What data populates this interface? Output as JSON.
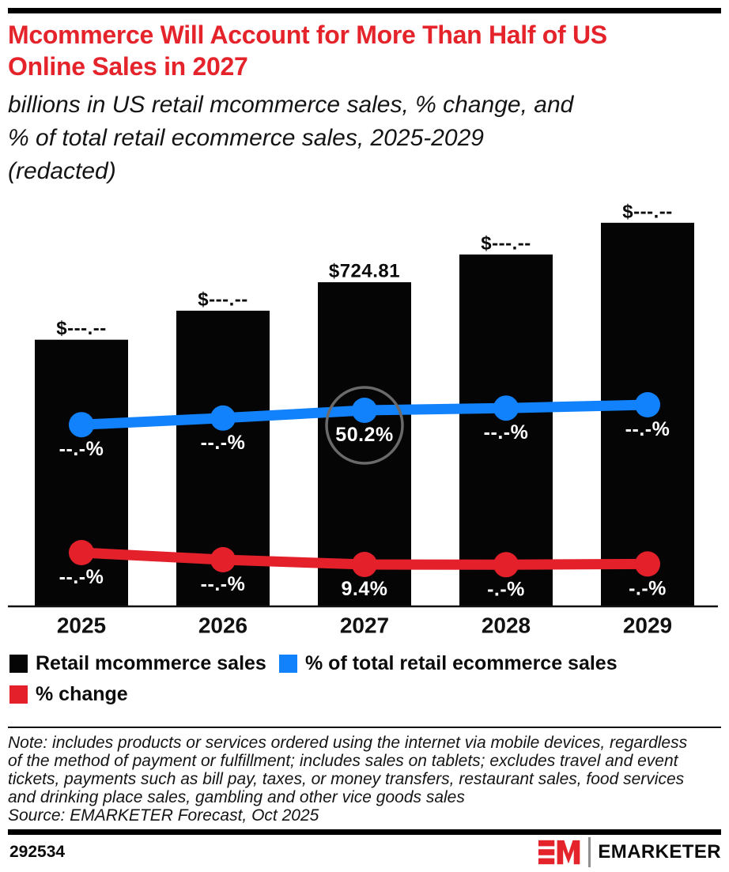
{
  "colors": {
    "title_red": "#e4232b",
    "brand_red": "#e4232b",
    "bar_black": "#050505",
    "line_blue": "#1182fb",
    "line_red": "#e4202a",
    "highlight_ring_gray": "#6a6a6a"
  },
  "header": {
    "title_lines": [
      "Mcommerce Will Account for More Than Half of US",
      "Online Sales in 2027"
    ],
    "subtitle_lines": [
      "billions in US retail mcommerce sales, % change, and",
      "% of total retail ecommerce sales, 2025-2029",
      "(redacted)"
    ]
  },
  "chart_data": {
    "type": "bar",
    "subtype": "combo-bar-and-lines",
    "categories": [
      "2025",
      "2026",
      "2027",
      "2028",
      "2029"
    ],
    "grid": false,
    "y_axis": "none (values labeled directly on marks; redacted values shown as dashes)",
    "legend_position": "bottom",
    "series": [
      {
        "name": "Retail mcommerce sales",
        "type": "bar",
        "unit": "billions of US$",
        "color": "#050505",
        "labels": [
          "$---.--",
          "$---.--",
          "$724.81",
          "$---.--",
          "$---.--"
        ],
        "visible_values": [
          null,
          null,
          724.81,
          null,
          null
        ],
        "estimated_values": [
          596,
          661,
          724.81,
          787,
          858
        ]
      },
      {
        "name": "% of total retail ecommerce sales",
        "type": "line",
        "unit": "%",
        "color": "#1182fb",
        "labels": [
          "--.-%",
          "--.-%",
          "50.2%",
          "--.-%",
          "--.-%"
        ],
        "visible_values": [
          null,
          null,
          50.2,
          null,
          null
        ],
        "estimated_values": [
          48.9,
          49.5,
          50.2,
          50.4,
          50.7
        ],
        "highlight_category": "2027"
      },
      {
        "name": "% change",
        "type": "line",
        "unit": "%",
        "color": "#e4202a",
        "labels": [
          "--.-%",
          "--.-%",
          "9.4%",
          "-.-%",
          "-.-%"
        ],
        "visible_values": [
          null,
          null,
          9.4,
          null,
          null
        ],
        "estimated_values": [
          14.4,
          11.4,
          9.4,
          9.3,
          9.6
        ]
      }
    ]
  },
  "legend": {
    "items": [
      {
        "label": "Retail mcommerce sales",
        "color": "#050505"
      },
      {
        "label": "% of total retail ecommerce sales",
        "color": "#1182fb"
      },
      {
        "label": "% change",
        "color": "#e4202a"
      }
    ]
  },
  "note": {
    "lines": [
      "Note: includes products or services ordered using the internet via mobile devices, regardless",
      "of the method of payment or fulfillment; includes sales on tablets; excludes travel and event",
      "tickets, payments such as bill pay, taxes, or money transfers, restaurant sales, food services",
      "and drinking place sales, gambling and other vice goods sales"
    ],
    "source": "Source: EMARKETER Forecast, Oct 2025"
  },
  "footer": {
    "chart_id": "292534",
    "brand_wordmark": "EMARKETER",
    "logo_mark": "EM"
  }
}
